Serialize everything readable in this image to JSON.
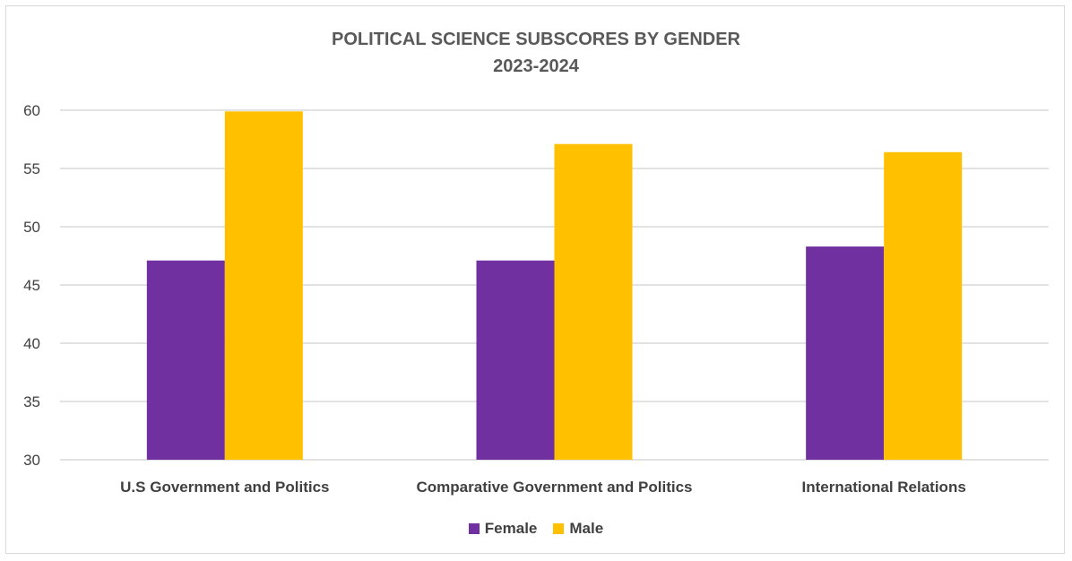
{
  "chart_data": {
    "type": "bar",
    "title": "POLITICAL SCIENCE SUBSCORES BY GENDER",
    "subtitle": "2023-2024",
    "categories": [
      "U.S Government and Politics",
      "Comparative Government and Politics",
      "International Relations"
    ],
    "series": [
      {
        "name": "Female",
        "color": "#7030a0",
        "values": [
          47.1,
          47.1,
          48.3
        ]
      },
      {
        "name": "Male",
        "color": "#ffc000",
        "values": [
          59.9,
          57.1,
          56.4
        ]
      }
    ],
    "ylim": [
      30,
      60
    ],
    "yticks": [
      30,
      35,
      40,
      45,
      50,
      55,
      60
    ],
    "grid": true,
    "legend_position": "bottom"
  }
}
